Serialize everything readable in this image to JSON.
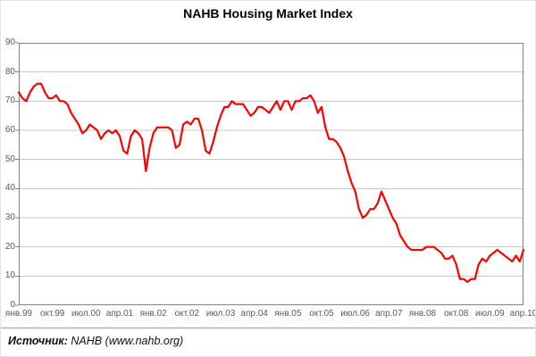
{
  "colors": {
    "line": "#FF0000",
    "gridline": "#C9C9C9",
    "plot_border": "#808080",
    "axis_text": "#595959",
    "title_text": "#000000",
    "divider": "#9A9A9A",
    "background": "#FFFFFF"
  },
  "footer": {
    "source_label": "Источник:",
    "source_text": " NAHB (www.nahb.org)"
  },
  "chart_data": {
    "type": "line",
    "title": "NAHB Housing Market Index",
    "ylim": [
      0,
      90
    ],
    "y_ticks": [
      0,
      10,
      20,
      30,
      40,
      50,
      60,
      70,
      80,
      90
    ],
    "x_tick_labels": [
      "янв.99",
      "окт.99",
      "июл.00",
      "апр.01",
      "янв.02",
      "окт.02",
      "июл.03",
      "апр.04",
      "янв.05",
      "окт.05",
      "июл.06",
      "апр.07",
      "янв.08",
      "окт.08",
      "июл.09",
      "апр.10"
    ],
    "x_tick_step_months": 9,
    "grid": "horizontal-only",
    "legend_position": "none",
    "series": [
      {
        "name": "NAHB Housing Market Index",
        "color": "#FF0000",
        "frequency": "monthly",
        "start": "янв.99",
        "end": "апр.10",
        "values": [
          73,
          71,
          70,
          73,
          75,
          76,
          76,
          73,
          71,
          71,
          72,
          70,
          70,
          69,
          66,
          64,
          62,
          59,
          60,
          62,
          61,
          60,
          57,
          59,
          60,
          59,
          60,
          58,
          53,
          52,
          58,
          60,
          59,
          57,
          46,
          54,
          59,
          61,
          61,
          61,
          61,
          60,
          54,
          55,
          62,
          63,
          62,
          64,
          64,
          60,
          53,
          52,
          56,
          61,
          65,
          68,
          68,
          70,
          69,
          69,
          69,
          67,
          65,
          66,
          68,
          68,
          67,
          66,
          68,
          70,
          67,
          70,
          70,
          67,
          70,
          70,
          71,
          71,
          72,
          70,
          66,
          68,
          61,
          57,
          57,
          56,
          54,
          51,
          46,
          42,
          39,
          33,
          30,
          31,
          33,
          33,
          35,
          39,
          36,
          33,
          30,
          28,
          24,
          22,
          20,
          19,
          19,
          19,
          19,
          20,
          20,
          20,
          19,
          18,
          16,
          16,
          17,
          14,
          9,
          9,
          8,
          9,
          9,
          14,
          16,
          15,
          17,
          18,
          19,
          18,
          17,
          16,
          15,
          17,
          15,
          19
        ]
      }
    ]
  }
}
